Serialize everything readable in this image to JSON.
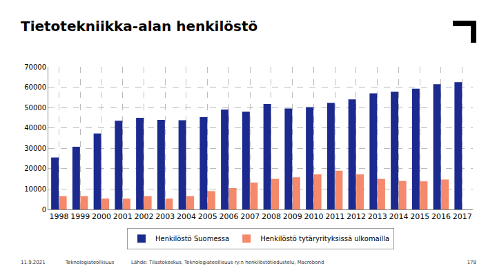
{
  "slide": {
    "title": "Tietotekniikka-alan henkilöstö",
    "footer": [
      "11.9.2021",
      "Teknologiateollisuus",
      "Lähde: Tilastokeskus, Teknologiateollisuus ry:n henkilöstötiedustelu, Macrobond",
      "178"
    ]
  },
  "chart_data": {
    "type": "bar",
    "categories": [
      "1998",
      "1999",
      "2000",
      "2001",
      "2002",
      "2003",
      "2004",
      "2005",
      "2006",
      "2007",
      "2008",
      "2009",
      "2010",
      "2011",
      "2012",
      "2013",
      "2014",
      "2015",
      "2016",
      "2017"
    ],
    "series": [
      {
        "name": "Henkilöstö Suomessa",
        "color": "#1c2a8f",
        "values": [
          25500,
          30800,
          37300,
          43500,
          45000,
          44000,
          43800,
          45300,
          49000,
          48000,
          51700,
          49500,
          50200,
          52300,
          54000,
          57000,
          57800,
          59300,
          61500,
          62500
        ]
      },
      {
        "name": "Henkilöstö tytäryrityksissä ulkomailla",
        "color": "#f4896b",
        "values": [
          6500,
          6500,
          5300,
          5300,
          6500,
          5300,
          6500,
          9000,
          10500,
          13200,
          15000,
          15800,
          17200,
          19000,
          17200,
          15000,
          14000,
          13800,
          14700,
          null
        ]
      }
    ],
    "ylim": [
      0,
      70000
    ],
    "yticks": [
      0,
      10000,
      20000,
      30000,
      40000,
      50000,
      60000,
      70000
    ],
    "grid": true,
    "legend": "bottom"
  }
}
